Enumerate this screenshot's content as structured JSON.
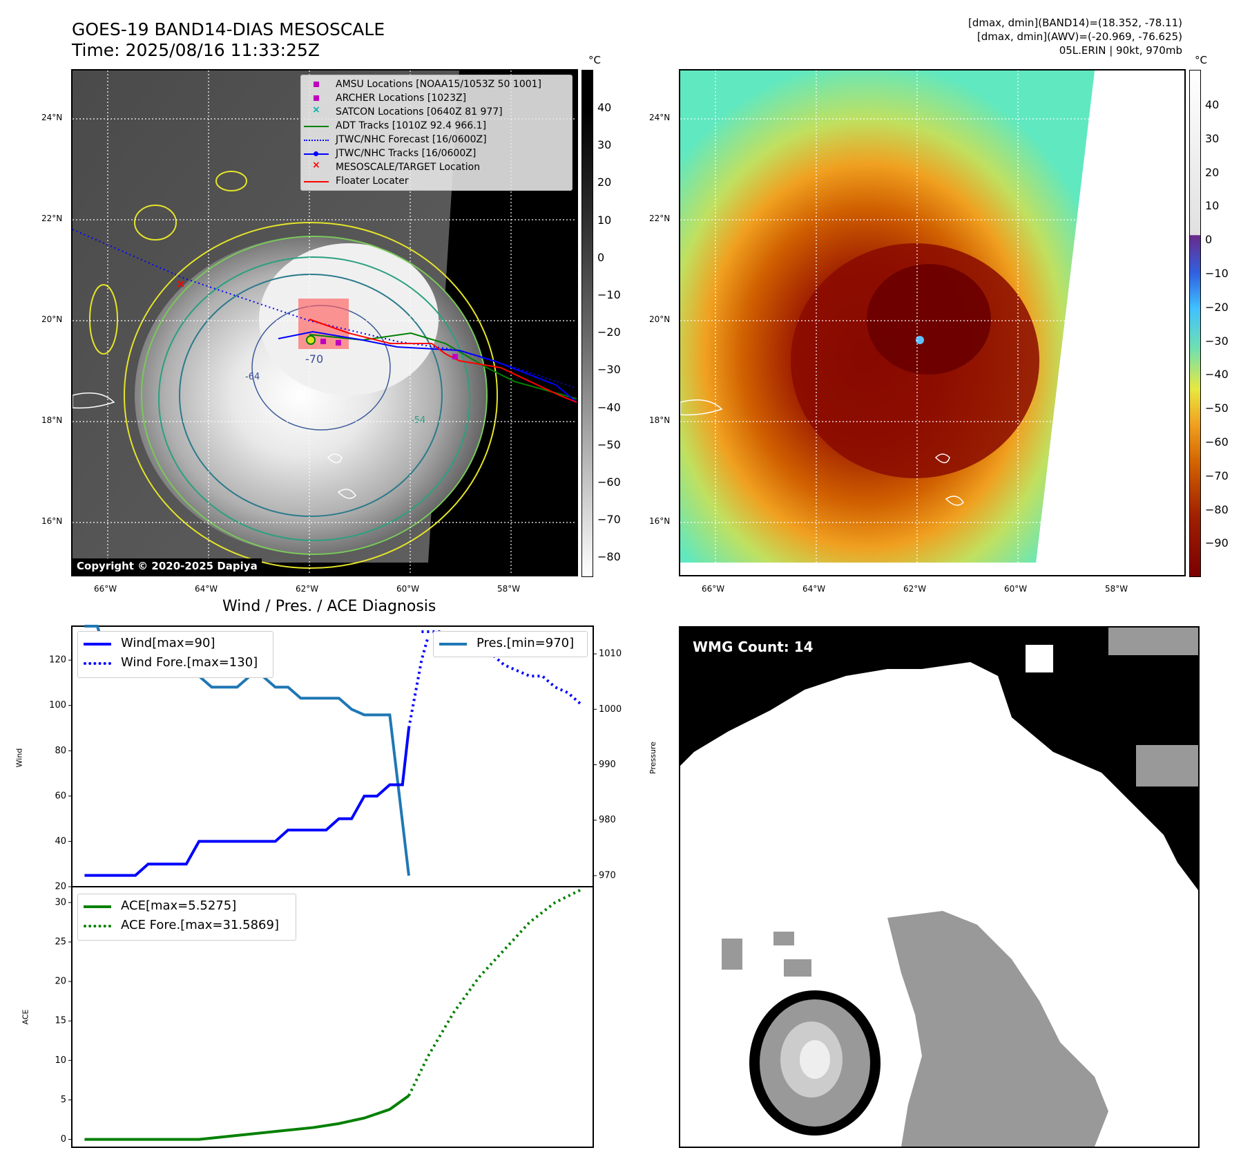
{
  "header": {
    "title_line1": "GOES-19 BAND14-DIAS MESOSCALE",
    "title_line2": "Time: 2025/08/16 11:33:25Z",
    "info_line1": "[dmax, dmin](BAND14)=(18.352, -78.11)",
    "info_line2": "[dmax, dmin](AWV)=(-20.969, -76.625)",
    "info_line3": "05L.ERIN | 90kt, 970mb"
  },
  "map_axes": {
    "lat_labels": [
      "24°N",
      "22°N",
      "20°N",
      "18°N",
      "16°N"
    ],
    "lon_labels": [
      "66°W",
      "64°W",
      "62°W",
      "60°W",
      "58°W"
    ]
  },
  "ir_map": {
    "unit": "°C",
    "colorbar_ticks": [
      "40",
      "30",
      "20",
      "10",
      "0",
      "−10",
      "−20",
      "−30",
      "−40",
      "−50",
      "−60",
      "−70",
      "−80"
    ],
    "copyright": "Copyright © 2020-2025 Dapiya",
    "contour_labels": [
      "-70",
      "-64",
      "-54"
    ],
    "legend": [
      {
        "label": "AMSU Locations [NOAA15/1053Z 50 1001]",
        "marker": "square",
        "color": "#c000c0"
      },
      {
        "label": "ARCHER Locations [1023Z]",
        "marker": "square",
        "color": "#c000c0"
      },
      {
        "label": "SATCON Locations [0640Z 81 977]",
        "marker": "x",
        "color": "#00b0b0"
      },
      {
        "label": "ADT Tracks [1010Z 92.4 966.1]",
        "marker": "line",
        "color": "#008000"
      },
      {
        "label": "JTWC/NHC Forecast [16/0600Z]",
        "marker": "dotted",
        "color": "#0000ff"
      },
      {
        "label": "JTWC/NHC Tracks [16/0600Z]",
        "marker": "line-dot",
        "color": "#0000ff"
      },
      {
        "label": "MESOSCALE/TARGET Location",
        "marker": "x",
        "color": "#ff0000"
      },
      {
        "label": "Floater Locater",
        "marker": "line",
        "color": "#ff0000"
      }
    ]
  },
  "awv_map": {
    "unit": "°C",
    "colorbar_ticks": [
      "40",
      "30",
      "20",
      "10",
      "0",
      "−10",
      "−20",
      "−30",
      "−40",
      "−50",
      "−60",
      "−70",
      "−80",
      "−90"
    ]
  },
  "diagnosis": {
    "title": "Wind / Pres. / ACE Diagnosis",
    "wind_axis_label": "Wind",
    "pressure_axis_label": "Pressure",
    "ace_axis_label": "ACE",
    "wind_legend": [
      "Wind[max=90]",
      "Wind Fore.[max=130]"
    ],
    "pres_legend": "Pres.[min=970]",
    "ace_legend": [
      "ACE[max=5.5275]",
      "ACE Fore.[max=31.5869]"
    ],
    "colors": {
      "wind": "#0000ff",
      "pressure": "#1f77b4",
      "ace": "#008000"
    }
  },
  "wmg": {
    "label": "WMG Count: 14"
  },
  "chart_data": [
    {
      "type": "line",
      "title": "Wind / Pres. / ACE Diagnosis",
      "ylabel": "Wind",
      "ylim": [
        20,
        135
      ],
      "yticks": [
        20,
        40,
        60,
        80,
        100,
        120
      ],
      "series": [
        {
          "name": "Wind[max=90]",
          "style": "solid",
          "x": [
            0,
            4,
            5,
            8,
            9,
            15,
            16,
            19,
            20,
            21,
            22,
            23,
            24,
            25,
            25.5
          ],
          "values": [
            25,
            25,
            30,
            30,
            40,
            40,
            45,
            45,
            50,
            50,
            60,
            60,
            65,
            65,
            90
          ]
        },
        {
          "name": "Wind Fore.[max=130]",
          "style": "dotted",
          "x": [
            25.5,
            26.5,
            27
          ],
          "values": [
            90,
            120,
            130
          ]
        }
      ],
      "y2label": "Pressure",
      "y2lim": [
        968,
        1015
      ],
      "y2ticks": [
        970,
        980,
        990,
        1000,
        1010
      ],
      "series2": [
        {
          "name": "Pres.[min=970]",
          "style": "solid",
          "x": [
            0,
            1,
            2,
            3,
            4,
            5,
            6,
            7,
            8,
            9,
            10,
            11,
            12,
            13,
            14,
            15,
            16,
            17,
            18,
            19,
            20,
            21,
            22,
            23,
            24,
            25.5
          ],
          "values": [
            1015,
            1015,
            1008,
            1007,
            1006,
            1006,
            1006,
            1006,
            1006,
            1006,
            1004,
            1004,
            1004,
            1006,
            1006,
            1004,
            1004,
            1002,
            1002,
            1002,
            1002,
            1000,
            999,
            999,
            999,
            970
          ]
        }
      ],
      "x_fore": [
        26.5,
        27,
        28,
        29,
        30,
        31,
        32,
        33,
        34,
        35,
        36,
        37,
        38,
        39
      ],
      "pres_fore_values": [
        1014,
        1014,
        1014,
        1013,
        1012,
        1011,
        1010,
        1008,
        1007,
        1006,
        1006,
        1004,
        1003,
        1001
      ]
    },
    {
      "type": "line",
      "ylabel": "ACE",
      "ylim": [
        -1,
        32
      ],
      "yticks": [
        0,
        5,
        10,
        15,
        20,
        25,
        30
      ],
      "series": [
        {
          "name": "ACE[max=5.5275]",
          "style": "solid",
          "x": [
            0,
            3,
            6,
            9,
            12,
            15,
            18,
            20,
            22,
            24,
            25.5
          ],
          "values": [
            0,
            0,
            0,
            0,
            0.5,
            1.0,
            1.5,
            2.0,
            2.7,
            3.8,
            5.53
          ]
        },
        {
          "name": "ACE Fore.[max=31.5869]",
          "style": "dotted",
          "x": [
            25.5,
            27,
            29,
            31,
            33,
            35,
            37,
            39
          ],
          "values": [
            5.53,
            10.5,
            16,
            20.5,
            24,
            27.5,
            30,
            31.59
          ]
        }
      ]
    }
  ]
}
